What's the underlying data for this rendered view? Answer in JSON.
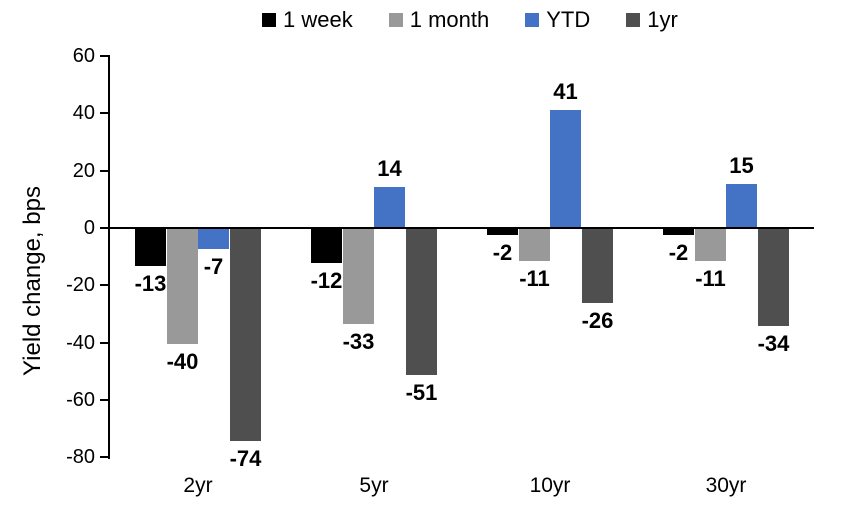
{
  "chart_data": {
    "type": "bar",
    "title": "",
    "categories": [
      "2yr",
      "5yr",
      "10yr",
      "30yr"
    ],
    "series": [
      {
        "name": "1 week",
        "color": "#000000",
        "values": [
          -13,
          -12,
          -2,
          -2
        ]
      },
      {
        "name": "1 month",
        "color": "#999999",
        "values": [
          -40,
          -33,
          -11,
          -11
        ]
      },
      {
        "name": "YTD",
        "color": "#4472c4",
        "values": [
          -7,
          14,
          41,
          15
        ]
      },
      {
        "name": "1yr",
        "color": "#4f4f4f",
        "values": [
          -74,
          -51,
          -26,
          -34
        ]
      }
    ],
    "xlabel": "",
    "ylabel": "Yield change, bps",
    "ylim": [
      -80,
      60
    ],
    "yticks": [
      60,
      40,
      20,
      0,
      -20,
      -40,
      -60,
      -80
    ],
    "grid": false,
    "legend_position": "top",
    "data_labels": "outside_end",
    "axis_color": "#000000",
    "text_color": "#000000",
    "background_color": "#ffffff"
  }
}
